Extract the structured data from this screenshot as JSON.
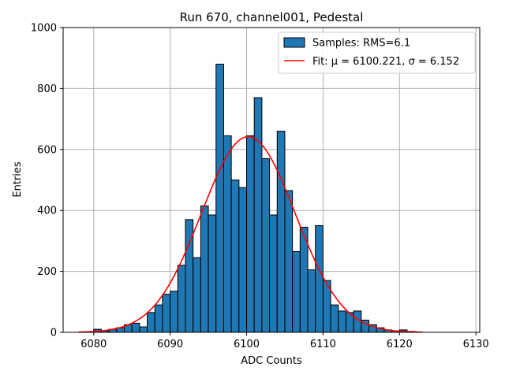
{
  "chart_data": {
    "type": "bar",
    "title": "Run 670, channel001, Pedestal",
    "xlabel": "ADC Counts",
    "ylabel": "Entries",
    "xlim": [
      6076,
      6130.5
    ],
    "ylim": [
      0,
      1000
    ],
    "grid": true,
    "legend_placement": "top-right",
    "x_ticks": [
      6080,
      6090,
      6100,
      6110,
      6120,
      6130
    ],
    "y_ticks": [
      0,
      200,
      400,
      600,
      800,
      1000
    ],
    "bin_width": 1,
    "bin_left_edges": [
      6080,
      6081,
      6082,
      6083,
      6084,
      6085,
      6086,
      6087,
      6088,
      6089,
      6090,
      6091,
      6092,
      6093,
      6094,
      6095,
      6096,
      6097,
      6098,
      6099,
      6100,
      6101,
      6102,
      6103,
      6104,
      6105,
      6106,
      6107,
      6108,
      6109,
      6110,
      6111,
      6112,
      6113,
      6114,
      6115,
      6116,
      6117,
      6118,
      6119,
      6120,
      6121
    ],
    "series": [
      {
        "name": "Samples: RMS=6.1",
        "kind": "histogram",
        "color": "#1f77b4",
        "edgecolor": "#000000",
        "values": [
          10,
          5,
          10,
          15,
          25,
          30,
          18,
          65,
          90,
          125,
          135,
          220,
          370,
          245,
          415,
          385,
          880,
          645,
          500,
          475,
          645,
          770,
          570,
          385,
          660,
          465,
          265,
          345,
          205,
          350,
          170,
          90,
          70,
          65,
          70,
          40,
          25,
          15,
          8,
          5,
          8,
          3
        ]
      },
      {
        "name": "Fit: μ = 6100.221, σ = 6.152",
        "kind": "gaussian",
        "color": "#ff0000",
        "mu": 6100.221,
        "sigma": 6.152,
        "amplitude": 642,
        "x_range": [
          6078,
          6123
        ]
      }
    ]
  }
}
